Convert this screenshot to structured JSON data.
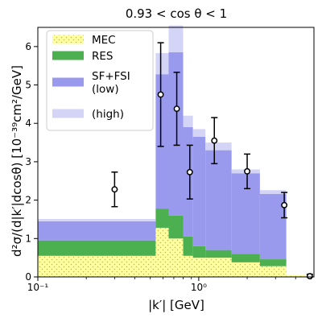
{
  "chart_data": {
    "type": "area",
    "title": "0.93 < cos θ < 1",
    "xlabel": "|k′| [GeV]",
    "ylabel": "d²σ/(d|k′|dcosθ) [10⁻³⁹cm²/GeV]",
    "xscale": "log",
    "xlim": [
      0.1,
      5.2
    ],
    "ylim": [
      0,
      6.5
    ],
    "x_tick_values": [
      0.1,
      1
    ],
    "x_tick_labels": [
      "10⁻¹",
      "10⁰"
    ],
    "y_tick_values": [
      0,
      1,
      2,
      3,
      4,
      5,
      6
    ],
    "y_tick_labels": [
      "0",
      "1",
      "2",
      "3",
      "4",
      "5",
      "6"
    ],
    "bin_edges": [
      0.1,
      0.54,
      0.65,
      0.8,
      0.92,
      1.1,
      1.6,
      2.4,
      3.5,
      4.6
    ],
    "series": [
      {
        "name": "MEC",
        "color": "#ffff9e",
        "hatch": "dots",
        "values": [
          0.55,
          1.28,
          1.0,
          0.55,
          0.5,
          0.5,
          0.38,
          0.28,
          0.05
        ]
      },
      {
        "name": "RES",
        "color": "#4caf50",
        "values": [
          0.4,
          0.5,
          0.6,
          0.5,
          0.3,
          0.2,
          0.22,
          0.18,
          0.0
        ]
      },
      {
        "name": "SF+FSI (low)",
        "color": "#9999ee",
        "values": [
          0.5,
          3.5,
          4.25,
          2.85,
          2.85,
          2.6,
          2.1,
          1.7,
          0.0
        ]
      },
      {
        "name": "(high)",
        "color": "#d4d4f7",
        "values": [
          0.06,
          0.55,
          0.7,
          0.3,
          0.2,
          0.2,
          0.1,
          0.1,
          0.0
        ]
      }
    ],
    "measurements": {
      "x": [
        0.3,
        0.58,
        0.73,
        0.88,
        1.25,
        2.0,
        3.4,
        4.9
      ],
      "y": [
        2.28,
        4.75,
        4.38,
        2.73,
        3.55,
        2.75,
        1.87,
        0.02
      ],
      "yerr": [
        0.45,
        1.35,
        0.95,
        0.7,
        0.6,
        0.45,
        0.33,
        0.05
      ]
    },
    "legend": {
      "position": "top-left"
    }
  }
}
